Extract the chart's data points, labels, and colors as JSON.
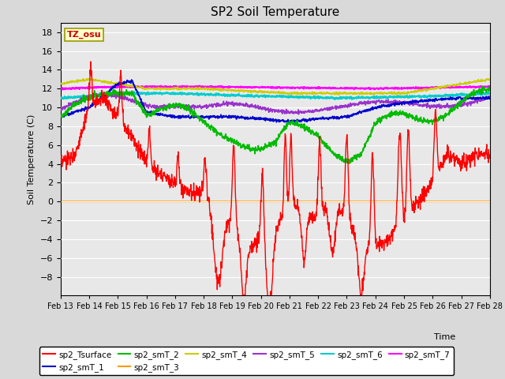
{
  "title": "SP2 Soil Temperature",
  "ylabel": "Soil Temperature (C)",
  "xlabel": "Time",
  "tz_label": "TZ_osu",
  "ylim": [
    -10,
    19
  ],
  "yticks": [
    -8,
    -6,
    -4,
    -2,
    0,
    2,
    4,
    6,
    8,
    10,
    12,
    14,
    16,
    18
  ],
  "x_end": 15,
  "num_points": 1500,
  "fig_bg_color": "#d9d9d9",
  "plot_bg_color": "#e8e8e8",
  "series_colors": {
    "sp2_Tsurface": "#ff0000",
    "sp2_smT_1": "#0000cc",
    "sp2_smT_2": "#00bb00",
    "sp2_smT_3": "#ff9900",
    "sp2_smT_4": "#cccc00",
    "sp2_smT_5": "#9933cc",
    "sp2_smT_6": "#00cccc",
    "sp2_smT_7": "#ff00ff"
  },
  "xtick_labels": [
    "Feb 13",
    "Feb 14",
    "Feb 15",
    "Feb 16",
    "Feb 17",
    "Feb 18",
    "Feb 19",
    "Feb 20",
    "Feb 21",
    "Feb 22",
    "Feb 23",
    "Feb 24",
    "Feb 25",
    "Feb 26",
    "Feb 27",
    "Feb 28"
  ],
  "xtick_positions": [
    0,
    1,
    2,
    3,
    4,
    5,
    6,
    7,
    8,
    9,
    10,
    11,
    12,
    13,
    14,
    15
  ]
}
